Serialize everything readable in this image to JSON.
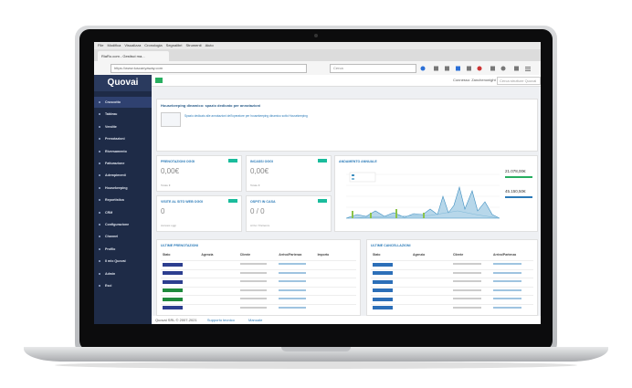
{
  "browser": {
    "menu": [
      "File",
      "Modifica",
      "Visualizza",
      "Cronologia",
      "Segnalibri",
      "Strumenti",
      "Aiuto"
    ],
    "tab": "RiaRo.com - Gestisci ma...",
    "url": "https://www.tuscanyaway.com",
    "search": "Cerca"
  },
  "app": {
    "logo": "Quovai",
    "user": "Connesso: Zanchenonight",
    "search": "Cerca strutture Quovai",
    "sidebar": [
      "Cruscotto",
      "Tableau",
      "Vendite",
      "Prenotazioni",
      "Riversamento",
      "Fatturazione",
      "Adempimenti",
      "Housekeeping",
      "Reportistica",
      "CRM",
      "Configurazione",
      "Channel",
      "Profilo",
      "Il mio Quovai",
      "Admin",
      "Esci"
    ],
    "notice": {
      "title": "Housekeeping dinamico: spazio dedicato per annotazioni",
      "text": "Spazio dedicato alle annotazioni dell'operatore per housekeeping dinamico sotto Housekeeping"
    },
    "cards": [
      {
        "title": "PRENOTAZIONI OGGI",
        "value": "0,00€",
        "sub": "Totale €"
      },
      {
        "title": "INCASSI OGGI",
        "value": "0,00€",
        "sub": "Totale €"
      },
      {
        "title": "VISITE AL SITO WEB OGGI",
        "value": "0",
        "sub": "Accessi oggi"
      },
      {
        "title": "OSPITI IN CASA",
        "value": "0 / 0",
        "sub": "Arrivi / Partenze"
      }
    ],
    "annual": {
      "title": "ANDAMENTO ANNUALE",
      "total1": "21.078,00€",
      "total2": "45.150,50€"
    },
    "tables": [
      {
        "title": "ULTIME PRENOTAZIONI",
        "columns": [
          "Stato",
          "Agenzia",
          "Cliente",
          "Arrivo/Partenza",
          "Importo"
        ]
      },
      {
        "title": "ULTIME CANCELLAZIONI",
        "columns": [
          "Stato",
          "Agenzia",
          "Cliente",
          "Arrivo/Partenza"
        ]
      }
    ],
    "footer": {
      "copyright": "Quovai SRL © 2007-2021",
      "support": "Supporto tecnico",
      "manual": "Manuale"
    }
  }
}
